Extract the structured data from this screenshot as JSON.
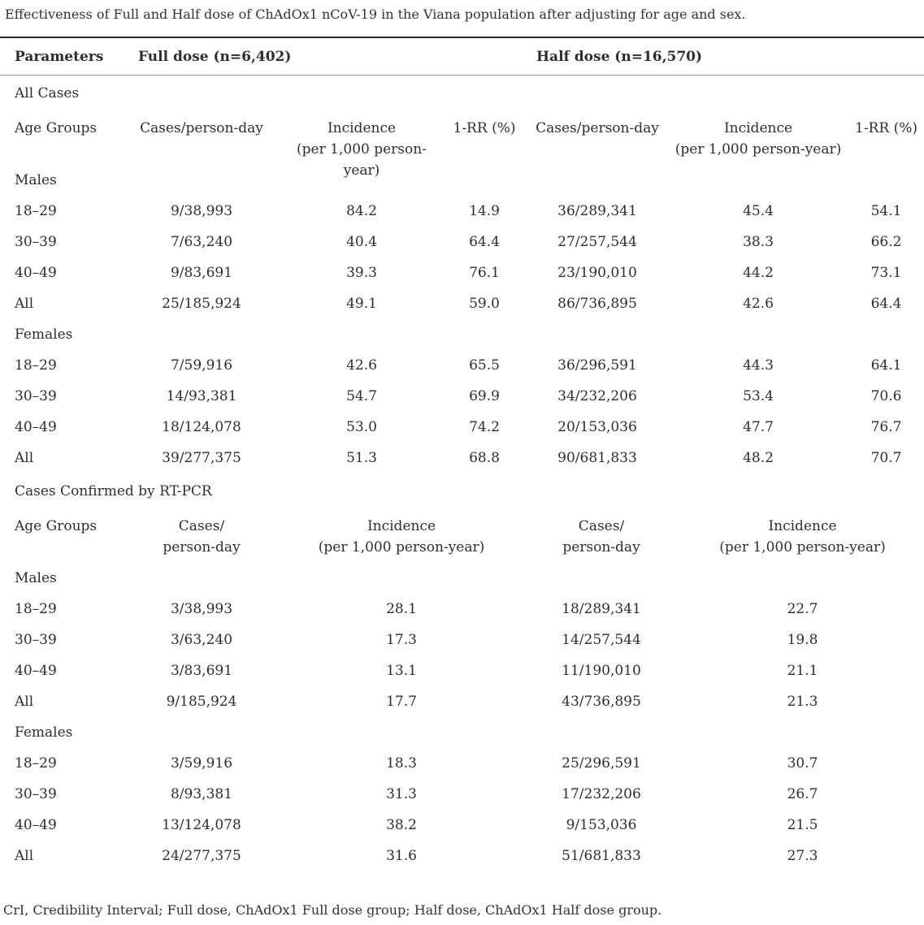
{
  "caption": "Effectiveness of Full and Half dose of ChAdOx1 nCoV-19 in the Viana population after adjusting for age and sex.",
  "header": {
    "parameters_label": "Parameters",
    "full_dose_label": "Full dose (n=6,402)",
    "half_dose_label": "Half dose (n=16,570)"
  },
  "colors": {
    "text": "#2e2e2e",
    "rule_dark": "#2b2b2b",
    "rule_light": "#999999"
  },
  "sections": [
    {
      "label": "All Cases",
      "layout": "s1",
      "column_headers": [
        [
          "Age Groups",
          ""
        ],
        [
          "Cases/person-day",
          ""
        ],
        [
          "Incidence",
          "(per 1,000 person-year)"
        ],
        [
          "1-RR (%)",
          ""
        ],
        [
          "Cases/person-day",
          ""
        ],
        [
          "Incidence",
          "(per 1,000 person-year)"
        ],
        [
          "1-RR (%)",
          ""
        ]
      ],
      "groups": [
        {
          "label": "Males",
          "rows": [
            [
              "18–29",
              "9/38,993",
              "84.2",
              "14.9",
              "36/289,341",
              "45.4",
              "54.1"
            ],
            [
              "30–39",
              "7/63,240",
              "40.4",
              "64.4",
              "27/257,544",
              "38.3",
              "66.2"
            ],
            [
              "40–49",
              "9/83,691",
              "39.3",
              "76.1",
              "23/190,010",
              "44.2",
              "73.1"
            ],
            [
              "All",
              "25/185,924",
              "49.1",
              "59.0",
              "86/736,895",
              "42.6",
              "64.4"
            ]
          ]
        },
        {
          "label": "Females",
          "rows": [
            [
              "18–29",
              "7/59,916",
              "42.6",
              "65.5",
              "36/296,591",
              "44.3",
              "64.1"
            ],
            [
              "30–39",
              "14/93,381",
              "54.7",
              "69.9",
              "34/232,206",
              "53.4",
              "70.6"
            ],
            [
              "40–49",
              "18/124,078",
              "53.0",
              "74.2",
              "20/153,036",
              "47.7",
              "76.7"
            ],
            [
              "All",
              "39/277,375",
              "51.3",
              "68.8",
              "90/681,833",
              "48.2",
              "70.7"
            ]
          ]
        }
      ]
    },
    {
      "label": "Cases Confirmed by RT-PCR",
      "layout": "s2",
      "column_headers": [
        [
          "Age Groups",
          ""
        ],
        [
          "Cases/",
          "person-day"
        ],
        [
          "Incidence",
          "(per 1,000 person-year)"
        ],
        [
          "Cases/",
          "person-day"
        ],
        [
          "Incidence",
          "(per 1,000 person-year)"
        ]
      ],
      "groups": [
        {
          "label": "Males",
          "rows": [
            [
              "18–29",
              "3/38,993",
              "28.1",
              "18/289,341",
              "22.7"
            ],
            [
              "30–39",
              "3/63,240",
              "17.3",
              "14/257,544",
              "19.8"
            ],
            [
              "40–49",
              "3/83,691",
              "13.1",
              "11/190,010",
              "21.1"
            ],
            [
              "All",
              "9/185,924",
              "17.7",
              "43/736,895",
              "21.3"
            ]
          ]
        },
        {
          "label": "Females",
          "rows": [
            [
              "18–29",
              "3/59,916",
              "18.3",
              "25/296,591",
              "30.7"
            ],
            [
              "30–39",
              "8/93,381",
              "31.3",
              "17/232,206",
              "26.7"
            ],
            [
              "40–49",
              "13/124,078",
              "38.2",
              "9/153,036",
              "21.5"
            ],
            [
              "All",
              "24/277,375",
              "31.6",
              "51/681,833",
              "27.3"
            ]
          ]
        }
      ]
    }
  ],
  "footnote": "CrI, Credibility Interval; Full dose, ChAdOx1 Full dose group; Half dose, ChAdOx1 Half dose group."
}
